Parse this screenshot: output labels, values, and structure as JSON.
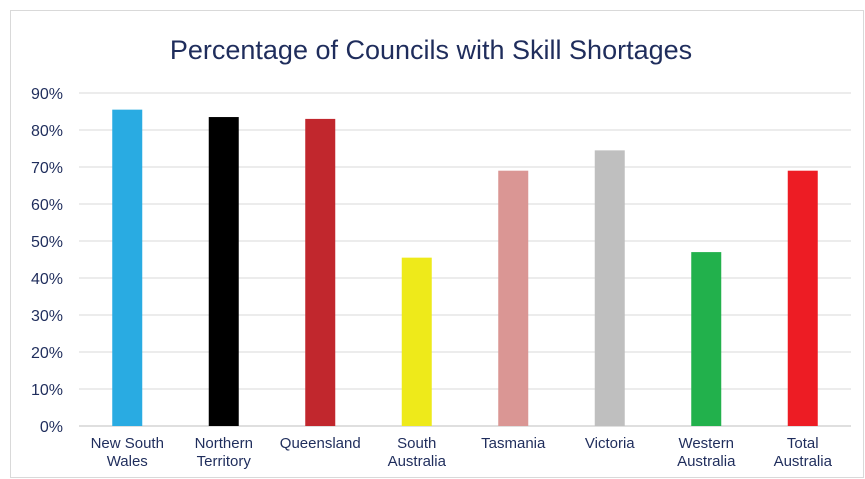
{
  "chart_data": {
    "type": "bar",
    "title": "Percentage  of Councils with Skill Shortages",
    "xlabel": "",
    "ylabel": "",
    "ylim": [
      0,
      90
    ],
    "yticks": [
      "0%",
      "10%",
      "20%",
      "30%",
      "40%",
      "50%",
      "60%",
      "70%",
      "80%",
      "90%"
    ],
    "grid": true,
    "legend": "none",
    "categories": [
      [
        "New South",
        "Wales"
      ],
      [
        "Northern",
        "Territory"
      ],
      [
        "Queensland"
      ],
      [
        "South",
        "Australia"
      ],
      [
        "Tasmania"
      ],
      [
        "Victoria"
      ],
      [
        "Western",
        "Australia"
      ],
      [
        "Total",
        "Australia"
      ]
    ],
    "values": [
      85.5,
      83.5,
      83,
      45.5,
      69,
      74.5,
      47,
      69
    ],
    "colors": [
      "#29abe2",
      "#000000",
      "#c1272d",
      "#eeea1a",
      "#da9694",
      "#bfbfbf",
      "#22b14c",
      "#ed1c24"
    ]
  }
}
